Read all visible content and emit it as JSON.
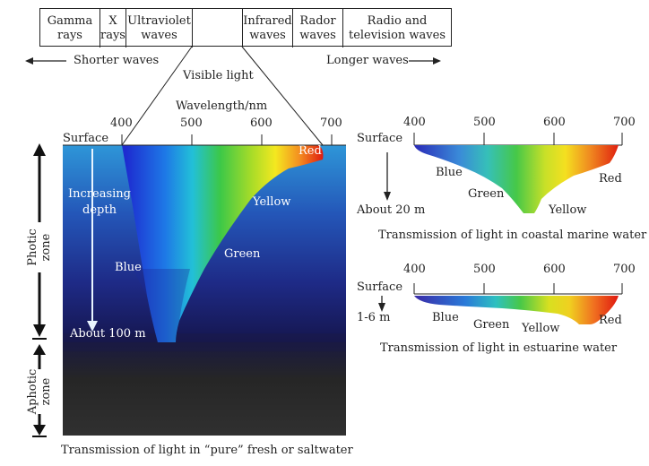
{
  "spectrum": {
    "cells": [
      {
        "line1": "Gamma",
        "line2": "rays"
      },
      {
        "line1": "X",
        "line2": "rays"
      },
      {
        "line1": "Ultraviolet",
        "line2": "waves"
      },
      {
        "line1": "",
        "line2": ""
      },
      {
        "line1": "Infrared",
        "line2": "waves"
      },
      {
        "line1": "Rador",
        "line2": "waves"
      },
      {
        "line1": "Radio and",
        "line2": "television waves"
      }
    ],
    "shorter_label": "Shorter waves",
    "longer_label": "Longer waves",
    "visible_label": "Visible light"
  },
  "main_panel": {
    "axis_title": "Wavelength/nm",
    "ticks": [
      "400",
      "500",
      "600",
      "700"
    ],
    "surface_label": "Surface",
    "increasing_line1": "Increasing",
    "increasing_line2": "depth",
    "about_label": "About 100 m",
    "photic_line1": "Photic",
    "photic_line2": "zone",
    "aphotic_line1": "Aphotic",
    "aphotic_line2": "zone",
    "color_labels": {
      "blue": "Blue",
      "green": "Green",
      "yellow": "Yellow",
      "red": "Red"
    },
    "caption": "Transmission of light in “pure” fresh or saltwater"
  },
  "coastal_panel": {
    "ticks": [
      "400",
      "500",
      "600",
      "700"
    ],
    "surface_label": "Surface",
    "depth_label": "About 20 m",
    "color_labels": {
      "blue": "Blue",
      "green": "Green",
      "yellow": "Yellow",
      "red": "Red"
    },
    "caption": "Transmission of light in coastal marine water"
  },
  "estuarine_panel": {
    "ticks": [
      "400",
      "500",
      "600",
      "700"
    ],
    "surface_label": "Surface",
    "depth_label": "1-6 m",
    "color_labels": {
      "blue": "Blue",
      "green": "Green",
      "yellow": "Yellow",
      "red": "Red"
    },
    "caption": "Transmission of light in estuarine water"
  },
  "colors": {
    "blue": "#2a3ad0",
    "green": "#3cc050",
    "yellow": "#f0e020",
    "red": "#e02010",
    "water_top": "#2c8fd0",
    "water_deep": "#14144a"
  }
}
